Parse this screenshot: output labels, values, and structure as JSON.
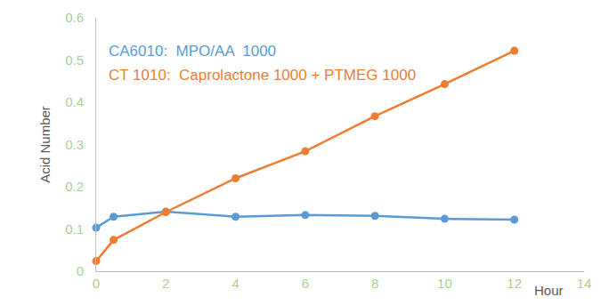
{
  "chart_data": {
    "type": "line",
    "x_label": "Hour",
    "y_label": "Acid Number",
    "x": [
      0,
      0.5,
      2,
      4,
      6,
      8,
      10,
      12
    ],
    "xlim": [
      0,
      14
    ],
    "xticks": [
      0,
      2,
      4,
      6,
      8,
      10,
      12,
      14
    ],
    "ylim": [
      0,
      0.6
    ],
    "yticks": [
      0,
      0.1,
      0.2,
      0.3,
      0.4,
      0.5,
      0.6
    ],
    "grid": false,
    "legend": "upper left",
    "marker": "circle",
    "series": [
      {
        "name": "CA6010:  MPO/AA  1000",
        "color": "#5b9bd5",
        "values": [
          0.103,
          0.129,
          0.141,
          0.129,
          0.133,
          0.131,
          0.124,
          0.122
        ]
      },
      {
        "name": "CT 1010:  Caprolactone 1000 + PTMEG 1000",
        "color": "#ed7d31",
        "values": [
          0.024,
          0.074,
          0.14,
          0.22,
          0.284,
          0.367,
          0.443,
          0.522
        ]
      }
    ]
  }
}
